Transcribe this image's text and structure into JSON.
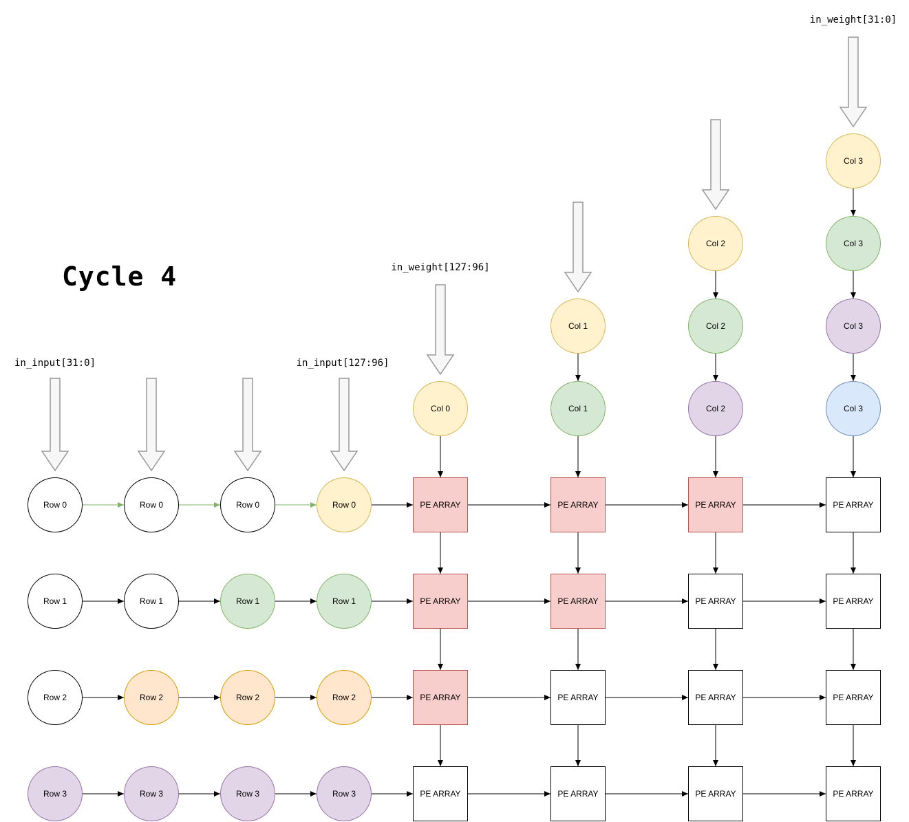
{
  "title": "Cycle 4",
  "io_labels": {
    "in_input_low": "in_input[31:0]",
    "in_input_high": "in_input[127:96]",
    "in_weight_high": "in_weight[127:96]",
    "in_weight_low": "in_weight[31:0]"
  },
  "pe_label": "PE ARRAY",
  "palette": {
    "white": {
      "fill": "#ffffff",
      "stroke": "#000000"
    },
    "yellow": {
      "fill": "#fff2cc",
      "stroke": "#d6b656"
    },
    "green": {
      "fill": "#d5e8d4",
      "stroke": "#82b366"
    },
    "orange": {
      "fill": "#ffe6cc",
      "stroke": "#d79b00"
    },
    "purple": {
      "fill": "#e1d5e7",
      "stroke": "#9673a6"
    },
    "blue": {
      "fill": "#dae8fc",
      "stroke": "#6c8ebf"
    },
    "pe_active": {
      "fill": "#f8cecc",
      "stroke": "#b85450"
    },
    "pe_inactive": {
      "fill": "#ffffff",
      "stroke": "#000000"
    },
    "arrow_black": "#000000",
    "arrow_green": "#82b366",
    "big_arrow_fill": "#f7f7f7",
    "big_arrow_stroke": "#999999"
  },
  "input_rows": [
    {
      "label": "Row 0",
      "cells": [
        "white",
        "white",
        "white",
        "yellow"
      ],
      "shift_arrow_color": "arrow_green"
    },
    {
      "label": "Row 1",
      "cells": [
        "white",
        "white",
        "green",
        "green"
      ],
      "shift_arrow_color": "arrow_black"
    },
    {
      "label": "Row 2",
      "cells": [
        "white",
        "orange",
        "orange",
        "orange"
      ],
      "shift_arrow_color": "arrow_black"
    },
    {
      "label": "Row 3",
      "cells": [
        "purple",
        "purple",
        "purple",
        "purple"
      ],
      "shift_arrow_color": "arrow_black"
    }
  ],
  "weight_columns": [
    {
      "label": "Col 0",
      "cells": [
        "yellow"
      ]
    },
    {
      "label": "Col 1",
      "cells": [
        "yellow",
        "green"
      ]
    },
    {
      "label": "Col 2",
      "cells": [
        "yellow",
        "green",
        "purple"
      ]
    },
    {
      "label": "Col 3",
      "cells": [
        "yellow",
        "green",
        "purple",
        "blue"
      ]
    }
  ],
  "pe_active_grid": [
    [
      true,
      true,
      true,
      false
    ],
    [
      true,
      true,
      false,
      false
    ],
    [
      true,
      false,
      false,
      false
    ],
    [
      false,
      false,
      false,
      false
    ]
  ]
}
